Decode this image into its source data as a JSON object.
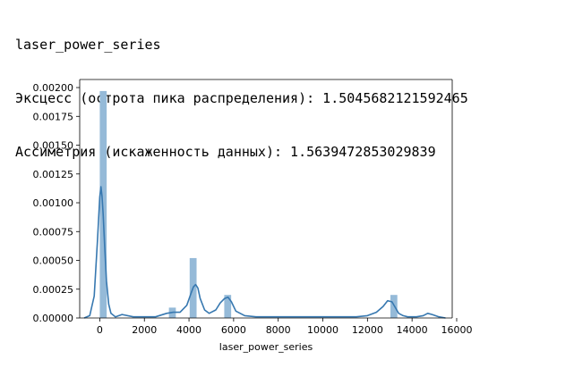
{
  "output": {
    "lines": [
      "laser_power_series",
      "Эксцесс (острота пика распределения): 1.5045682121592465",
      "Ассиметрия (искаженность данных): 1.5639472853029839"
    ]
  },
  "chart_data": {
    "type": "histogram_kde",
    "title": "",
    "xlabel": "laser_power_series",
    "ylabel": "",
    "xlim": [
      -900,
      15800
    ],
    "ylim": [
      0,
      0.00207
    ],
    "x_ticks": [
      0,
      2000,
      4000,
      6000,
      8000,
      10000,
      12000,
      14000,
      16000
    ],
    "x_tick_labels": [
      "0",
      "2000",
      "4000",
      "6000",
      "8000",
      "10000",
      "12000",
      "14000",
      "16000"
    ],
    "y_ticks": [
      0,
      0.00025,
      0.0005,
      0.00075,
      0.001,
      0.00125,
      0.0015,
      0.00175,
      0.002
    ],
    "y_tick_labels": [
      "0.00000",
      "0.00025",
      "0.00050",
      "0.00075",
      "0.00100",
      "0.00125",
      "0.00150",
      "0.00175",
      "0.00200"
    ],
    "grid": false,
    "colors": {
      "bar": "#95bad8",
      "line": "#3778b0",
      "axis": "#000000"
    },
    "histogram": {
      "bins": [
        {
          "x0": 0,
          "x1": 310,
          "density": 0.00197
        },
        {
          "x0": 3100,
          "x1": 3410,
          "density": 9e-05
        },
        {
          "x0": 4030,
          "x1": 4340,
          "density": 0.00052
        },
        {
          "x0": 5580,
          "x1": 5890,
          "density": 0.0002
        },
        {
          "x0": 13030,
          "x1": 13340,
          "density": 0.0002
        }
      ]
    },
    "kde": {
      "x": [
        -700,
        -450,
        -250,
        -100,
        0,
        50,
        100,
        150,
        220,
        300,
        400,
        500,
        700,
        1000,
        1500,
        2000,
        2500,
        3000,
        3300,
        3600,
        3900,
        4100,
        4200,
        4300,
        4400,
        4500,
        4700,
        4900,
        5200,
        5400,
        5600,
        5750,
        5900,
        6100,
        6500,
        7000,
        7500,
        8000,
        9000,
        10000,
        11000,
        11500,
        12000,
        12400,
        12700,
        12900,
        13100,
        13250,
        13400,
        13600,
        13800,
        14200,
        14500,
        14700,
        14900,
        15200,
        15500
      ],
      "y": [
        0.0,
        2e-05,
        0.00019,
        0.00068,
        0.00105,
        0.00114,
        0.00106,
        0.0009,
        0.00062,
        0.00032,
        0.00012,
        4e-05,
        1e-05,
        3e-05,
        1e-05,
        1e-05,
        1e-05,
        4e-05,
        5e-05,
        5e-05,
        0.00011,
        0.00022,
        0.00027,
        0.00029,
        0.00026,
        0.00017,
        7e-05,
        4e-05,
        7e-05,
        0.00013,
        0.00017,
        0.00018,
        0.00014,
        6e-05,
        2e-05,
        1e-05,
        1e-05,
        1e-05,
        1e-05,
        1e-05,
        1e-05,
        1e-05,
        2e-05,
        5e-05,
        0.0001,
        0.00015,
        0.00014,
        9e-05,
        4e-05,
        2e-05,
        1e-05,
        1e-05,
        2e-05,
        4e-05,
        3e-05,
        1e-05,
        0.0
      ]
    }
  }
}
